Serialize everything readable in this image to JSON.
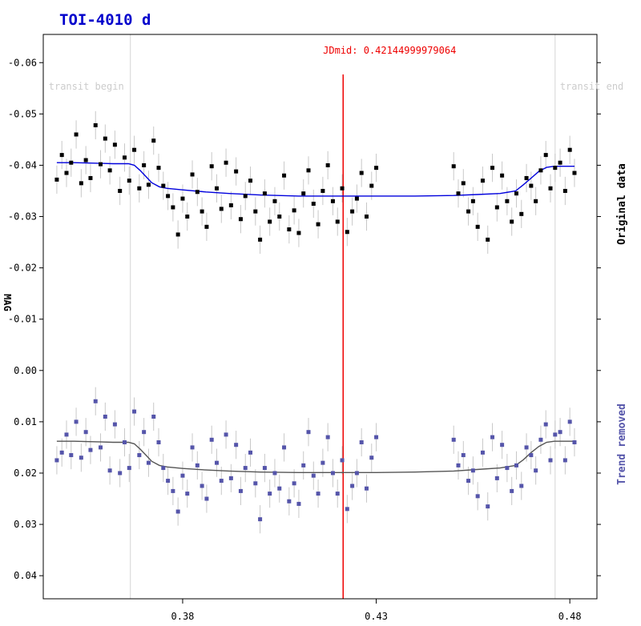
{
  "chart_data": {
    "type": "scatter",
    "title": "TOI-4010 d",
    "ylabel": "MAG",
    "xlabel": "",
    "x_ticks": [
      0.38,
      0.43,
      0.48
    ],
    "x_range": [
      0.344,
      0.487
    ],
    "y_ticks": [
      -0.06,
      -0.05,
      -0.04,
      -0.03,
      -0.02,
      -0.01,
      0.0,
      0.01,
      0.02,
      0.03,
      0.04
    ],
    "y_tick_labels": [
      "-0.06",
      "-0.05",
      "-0.04",
      "-0.03",
      "-0.02",
      "-0.01",
      "0.00",
      "0.01",
      "0.02",
      "0.03",
      "0.04"
    ],
    "y_range": [
      -0.0655,
      0.0445
    ],
    "y_inverted": true,
    "grid": false,
    "jdmid": {
      "label": "JDmid: 0.42144999979064",
      "x": 0.42145,
      "color": "#ee0000"
    },
    "transit_begin": {
      "label": "transit begin",
      "x": 0.3665
    },
    "transit_end": {
      "label": "transit end",
      "x": 0.4762
    },
    "series": [
      {
        "name": "Original data",
        "color": "#000000",
        "model_color": "#0000dd",
        "x": [
          0.3475,
          0.3488,
          0.35,
          0.3512,
          0.3525,
          0.3538,
          0.355,
          0.3562,
          0.3575,
          0.3588,
          0.36,
          0.3612,
          0.3625,
          0.3638,
          0.365,
          0.3662,
          0.3675,
          0.3688,
          0.37,
          0.3712,
          0.3725,
          0.3738,
          0.375,
          0.3762,
          0.3775,
          0.3788,
          0.38,
          0.3812,
          0.3825,
          0.3838,
          0.385,
          0.3862,
          0.3875,
          0.3888,
          0.39,
          0.3912,
          0.3925,
          0.3938,
          0.395,
          0.3962,
          0.3975,
          0.3988,
          0.4,
          0.4012,
          0.4025,
          0.4038,
          0.405,
          0.4062,
          0.4075,
          0.4088,
          0.41,
          0.4112,
          0.4125,
          0.4138,
          0.415,
          0.4162,
          0.4175,
          0.4188,
          0.42,
          0.4212,
          0.4225,
          0.4238,
          0.425,
          0.4262,
          0.4275,
          0.4288,
          0.43,
          0.45,
          0.4512,
          0.4525,
          0.4538,
          0.455,
          0.4562,
          0.4575,
          0.4588,
          0.46,
          0.4612,
          0.4625,
          0.4638,
          0.465,
          0.4662,
          0.4675,
          0.4688,
          0.47,
          0.4712,
          0.4725,
          0.4738,
          0.475,
          0.4762,
          0.4775,
          0.4788,
          0.48,
          0.4812
        ],
        "y": [
          -0.0372,
          -0.042,
          -0.0385,
          -0.0405,
          -0.046,
          -0.0365,
          -0.041,
          -0.0375,
          -0.0478,
          -0.0402,
          -0.0452,
          -0.039,
          -0.044,
          -0.035,
          -0.0415,
          -0.037,
          -0.043,
          -0.0355,
          -0.04,
          -0.0362,
          -0.0448,
          -0.0395,
          -0.036,
          -0.034,
          -0.0318,
          -0.0265,
          -0.0335,
          -0.03,
          -0.0382,
          -0.0348,
          -0.031,
          -0.028,
          -0.0398,
          -0.0355,
          -0.0315,
          -0.0405,
          -0.0322,
          -0.0388,
          -0.0295,
          -0.034,
          -0.037,
          -0.031,
          -0.0255,
          -0.0345,
          -0.029,
          -0.033,
          -0.03,
          -0.038,
          -0.0275,
          -0.0312,
          -0.0268,
          -0.0345,
          -0.039,
          -0.0325,
          -0.0285,
          -0.035,
          -0.04,
          -0.033,
          -0.029,
          -0.0355,
          -0.027,
          -0.031,
          -0.0335,
          -0.0385,
          -0.03,
          -0.036,
          -0.0395,
          -0.0398,
          -0.0345,
          -0.0365,
          -0.031,
          -0.033,
          -0.028,
          -0.037,
          -0.0255,
          -0.0395,
          -0.0318,
          -0.038,
          -0.033,
          -0.029,
          -0.0345,
          -0.0305,
          -0.0375,
          -0.036,
          -0.033,
          -0.039,
          -0.042,
          -0.0355,
          -0.0395,
          -0.0405,
          -0.035,
          -0.043,
          -0.0385
        ],
        "model_x": [
          0.3475,
          0.352,
          0.358,
          0.362,
          0.366,
          0.3675,
          0.369,
          0.3705,
          0.372,
          0.374,
          0.376,
          0.38,
          0.386,
          0.392,
          0.4,
          0.41,
          0.42,
          0.43,
          0.44,
          0.45,
          0.456,
          0.462,
          0.466,
          0.468,
          0.47,
          0.472,
          0.474,
          0.476,
          0.48,
          0.4812
        ],
        "model_y": [
          -0.0405,
          -0.0405,
          -0.0404,
          -0.0403,
          -0.0403,
          -0.04,
          -0.039,
          -0.0378,
          -0.0366,
          -0.0358,
          -0.0355,
          -0.0352,
          -0.0348,
          -0.0345,
          -0.0342,
          -0.034,
          -0.034,
          -0.034,
          -0.034,
          -0.0341,
          -0.0343,
          -0.0345,
          -0.035,
          -0.0362,
          -0.0375,
          -0.0388,
          -0.0396,
          -0.0398,
          -0.0398,
          -0.0398
        ],
        "error": 0.0055
      },
      {
        "name": "Trend removed",
        "color": "#5555aa",
        "model_color": "#555555",
        "x": [
          0.3475,
          0.3488,
          0.35,
          0.3512,
          0.3525,
          0.3538,
          0.355,
          0.3562,
          0.3575,
          0.3588,
          0.36,
          0.3612,
          0.3625,
          0.3638,
          0.365,
          0.3662,
          0.3675,
          0.3688,
          0.37,
          0.3712,
          0.3725,
          0.3738,
          0.375,
          0.3762,
          0.3775,
          0.3788,
          0.38,
          0.3812,
          0.3825,
          0.3838,
          0.385,
          0.3862,
          0.3875,
          0.3888,
          0.39,
          0.3912,
          0.3925,
          0.3938,
          0.395,
          0.3962,
          0.3975,
          0.3988,
          0.4,
          0.4012,
          0.4025,
          0.4038,
          0.405,
          0.4062,
          0.4075,
          0.4088,
          0.41,
          0.4112,
          0.4125,
          0.4138,
          0.415,
          0.4162,
          0.4175,
          0.4188,
          0.42,
          0.4212,
          0.4225,
          0.4238,
          0.425,
          0.4262,
          0.4275,
          0.4288,
          0.43,
          0.45,
          0.4512,
          0.4525,
          0.4538,
          0.455,
          0.4562,
          0.4575,
          0.4588,
          0.46,
          0.4612,
          0.4625,
          0.4638,
          0.465,
          0.4662,
          0.4675,
          0.4688,
          0.47,
          0.4712,
          0.4725,
          0.4738,
          0.475,
          0.4762,
          0.4775,
          0.4788,
          0.48,
          0.4812
        ],
        "y": [
          0.0175,
          0.016,
          0.0125,
          0.0165,
          0.01,
          0.017,
          0.012,
          0.0155,
          0.006,
          0.015,
          0.009,
          0.0195,
          0.0105,
          0.02,
          0.014,
          0.019,
          0.008,
          0.0165,
          0.012,
          0.018,
          0.009,
          0.014,
          0.019,
          0.0215,
          0.0235,
          0.0275,
          0.0205,
          0.024,
          0.015,
          0.0185,
          0.0225,
          0.025,
          0.0135,
          0.018,
          0.0215,
          0.0125,
          0.021,
          0.0145,
          0.0235,
          0.019,
          0.016,
          0.022,
          0.029,
          0.019,
          0.024,
          0.02,
          0.023,
          0.015,
          0.0255,
          0.022,
          0.026,
          0.0185,
          0.012,
          0.0205,
          0.024,
          0.018,
          0.013,
          0.02,
          0.024,
          0.0175,
          0.027,
          0.0225,
          0.02,
          0.014,
          0.023,
          0.017,
          0.013,
          0.0135,
          0.0185,
          0.0165,
          0.0215,
          0.0195,
          0.0245,
          0.016,
          0.0265,
          0.013,
          0.021,
          0.0145,
          0.019,
          0.0235,
          0.0185,
          0.0225,
          0.015,
          0.0165,
          0.0195,
          0.0135,
          0.0105,
          0.0175,
          0.0125,
          0.012,
          0.0175,
          0.01,
          0.014
        ],
        "model_x": [
          0.3475,
          0.352,
          0.358,
          0.362,
          0.366,
          0.3675,
          0.369,
          0.3705,
          0.372,
          0.374,
          0.376,
          0.38,
          0.386,
          0.392,
          0.4,
          0.41,
          0.42,
          0.43,
          0.44,
          0.45,
          0.456,
          0.462,
          0.466,
          0.468,
          0.47,
          0.472,
          0.474,
          0.476,
          0.48,
          0.4812
        ],
        "model_y": [
          0.0138,
          0.0138,
          0.0139,
          0.014,
          0.014,
          0.0143,
          0.0153,
          0.0165,
          0.0177,
          0.0185,
          0.0188,
          0.0191,
          0.0194,
          0.0196,
          0.0198,
          0.0199,
          0.0199,
          0.0199,
          0.0198,
          0.0196,
          0.0193,
          0.019,
          0.0185,
          0.0174,
          0.016,
          0.0148,
          0.014,
          0.0138,
          0.0138,
          0.0138
        ],
        "error": 0.0055
      }
    ]
  }
}
